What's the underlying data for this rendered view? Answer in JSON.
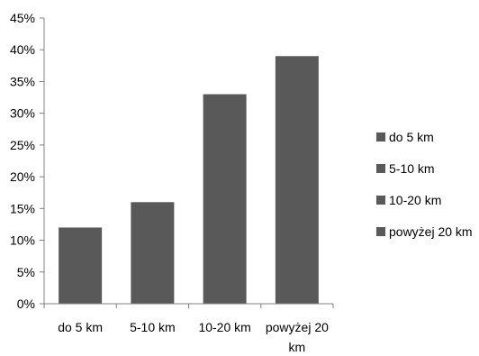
{
  "chart_data": {
    "type": "bar",
    "categories": [
      "do 5 km",
      "5-10 km",
      "10-20 km",
      "powyżej 20 km"
    ],
    "category_tick_lines": [
      [
        "do 5 km"
      ],
      [
        "5-10 km"
      ],
      [
        "10-20 km"
      ],
      [
        "powyżej 20",
        "km"
      ]
    ],
    "values": [
      12,
      16,
      33,
      39
    ],
    "unit": "%",
    "ylim": [
      0,
      45
    ],
    "yticks": [
      0,
      5,
      10,
      15,
      20,
      25,
      30,
      35,
      40,
      45
    ],
    "ytick_labels": [
      "0%",
      "5%",
      "10%",
      "15%",
      "20%",
      "25%",
      "30%",
      "35%",
      "40%",
      "45%"
    ],
    "title": "",
    "xlabel": "",
    "ylabel": "",
    "grid": false,
    "legend": {
      "placement": "right",
      "entries": [
        "do 5 km",
        "5-10 km",
        "10-20 km",
        "powyżej 20 km"
      ]
    },
    "colors": {
      "bar": "#595959",
      "axis": "#808080"
    }
  }
}
